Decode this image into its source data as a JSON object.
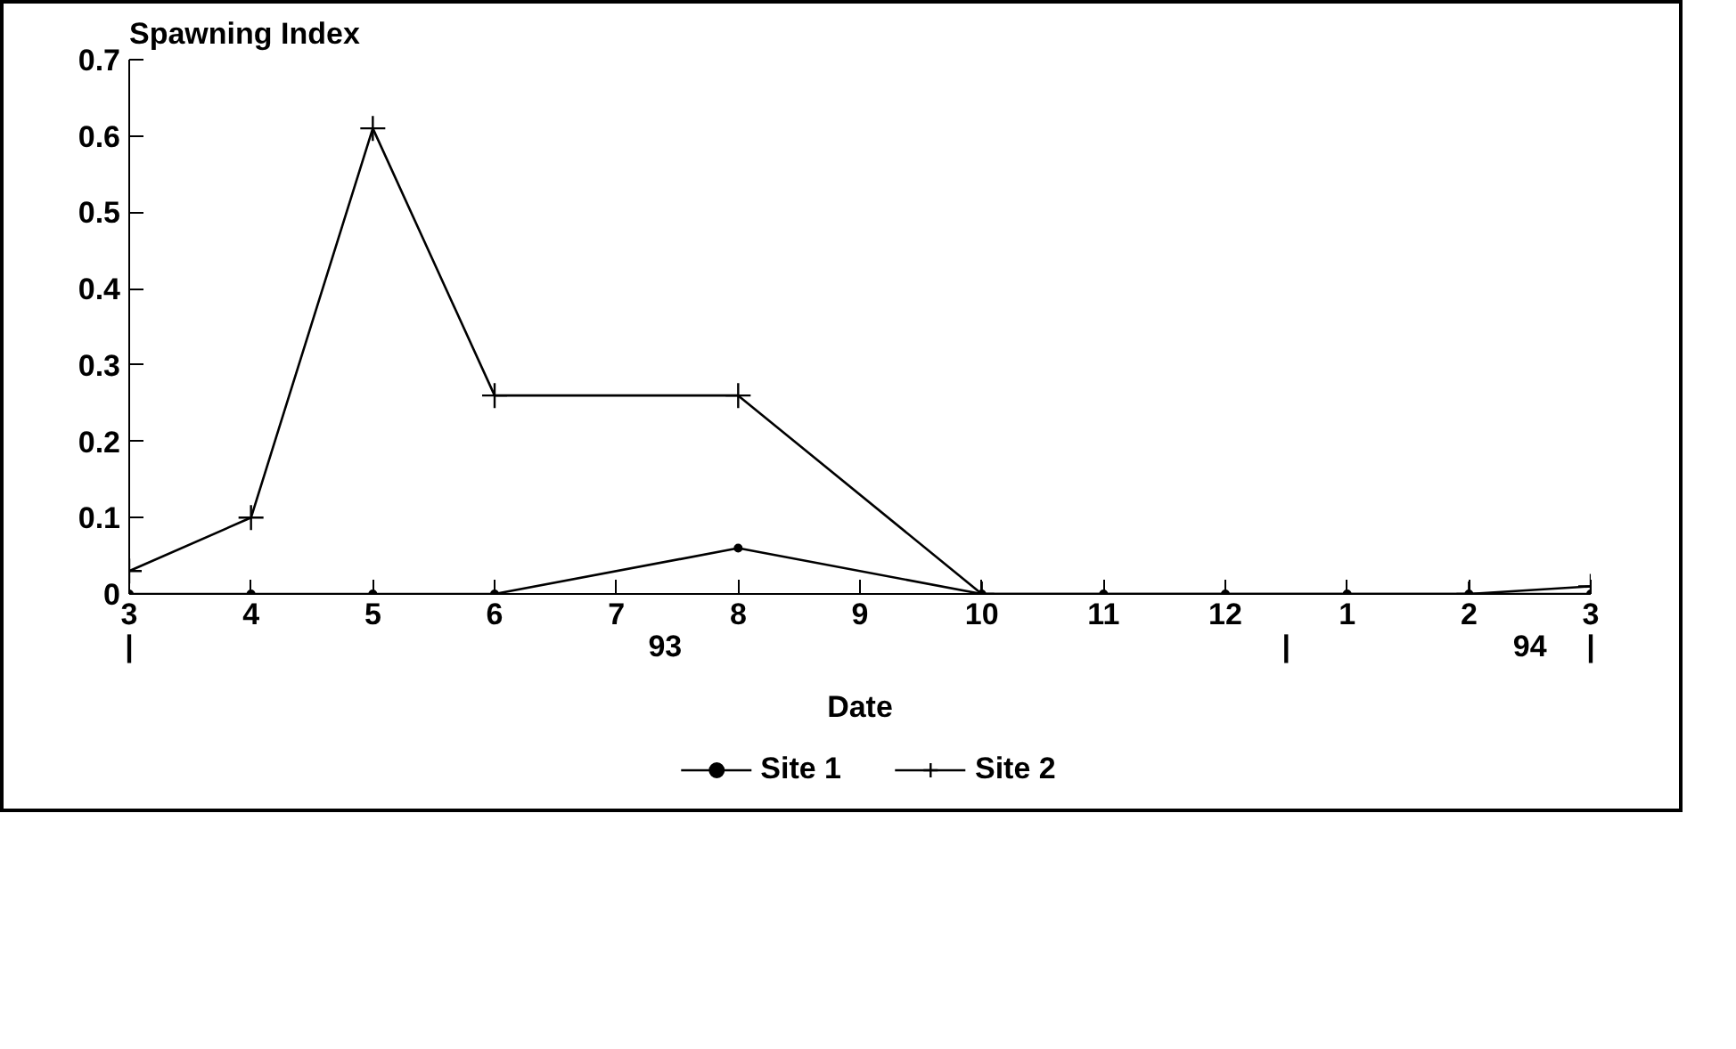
{
  "chart_data": {
    "type": "line",
    "ylabel": "Spawning Index",
    "xlabel": "Date",
    "categories": [
      "3",
      "4",
      "5",
      "6",
      "7",
      "8",
      "9",
      "10",
      "11",
      "12",
      "1",
      "2",
      "3"
    ],
    "ylim": [
      0,
      0.7
    ],
    "yticks": [
      0,
      0.1,
      0.2,
      0.3,
      0.4,
      0.5,
      0.6,
      0.7
    ],
    "series": [
      {
        "name": "Site 1",
        "color": "#000000",
        "marker": "circle",
        "values": [
          0,
          0,
          0,
          0,
          null,
          0.06,
          null,
          0,
          0,
          0,
          0,
          0,
          0
        ]
      },
      {
        "name": "Site 2",
        "color": "#000000",
        "marker": "cross",
        "values": [
          0.03,
          0.1,
          0.61,
          0.26,
          null,
          0.26,
          null,
          0,
          null,
          null,
          null,
          0,
          0.01
        ]
      }
    ],
    "annotations": [
      "|",
      "93",
      "|",
      "94",
      "|"
    ],
    "legend": "bottom",
    "line_style": "solid"
  }
}
